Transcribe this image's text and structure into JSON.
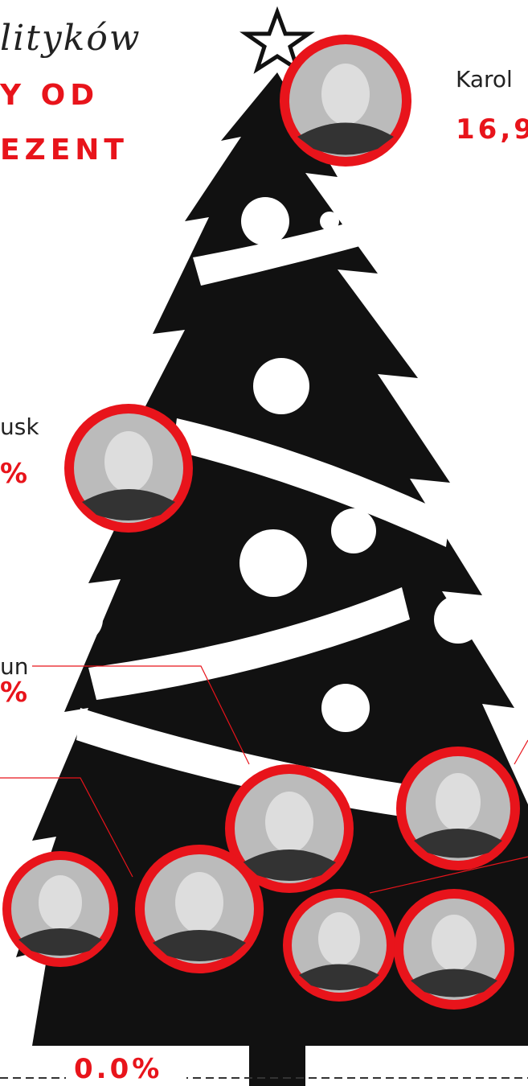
{
  "title_fragment": "lityków",
  "headline": [
    "Y OD",
    "EZENT"
  ],
  "labels": [
    {
      "name": "Karol",
      "value": "16,9"
    },
    {
      "name": "usk",
      "value": "%"
    },
    {
      "name": "un",
      "value": "%"
    }
  ],
  "baseline_label": "0.0%"
}
